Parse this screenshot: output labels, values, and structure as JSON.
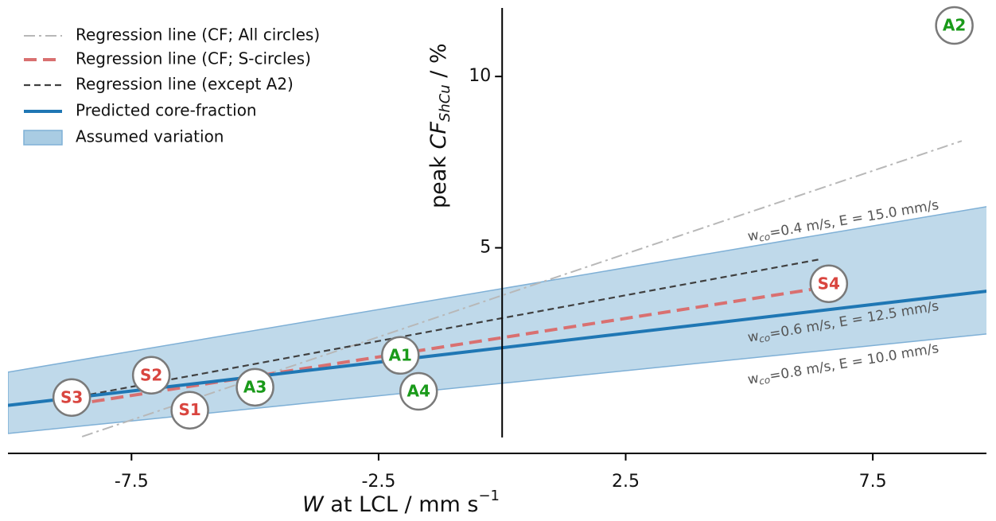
{
  "chart_data": {
    "type": "line",
    "xlabel": [
      "W",
      " at LCL / mm s",
      "−1"
    ],
    "ylabel": [
      "peak ",
      "CF",
      "ShCu",
      " / %"
    ],
    "xlim": [
      -10,
      9.8
    ],
    "ylim": [
      -1,
      12
    ],
    "xticks": [
      -7.5,
      -2.5,
      2.5,
      7.5
    ],
    "yticks": [
      5,
      10
    ],
    "legend": "upper left",
    "band": {
      "name": "Assumed variation",
      "color": "#a9cce3",
      "edge": "#7fb0d6",
      "x": [
        -10,
        9.84
      ],
      "upper": [
        1.37,
        6.21
      ],
      "lower": [
        -0.42,
        2.49
      ]
    },
    "series": [
      {
        "name": "Regression line (CF; All circles)",
        "color": "#b8b8b8",
        "linestyle": "dashdot",
        "x": [
          -8.5,
          9.3
        ],
        "values": [
          -0.51,
          8.12
        ]
      },
      {
        "name": "Regression line (CF; S-circles)",
        "color": "#d97070",
        "linestyle": "dashed",
        "x": [
          -8.3,
          6.5
        ],
        "values": [
          0.51,
          3.84
        ]
      },
      {
        "name": "Regression line (except A2)",
        "color": "#404040",
        "linestyle": "dashed-thin",
        "x": [
          -8.34,
          6.45
        ],
        "values": [
          0.72,
          4.67
        ]
      },
      {
        "name": "Predicted core-fraction",
        "color": "#1f77b4",
        "linestyle": "solid",
        "x": [
          -10,
          9.84
        ],
        "values": [
          0.4,
          3.74
        ]
      }
    ],
    "points": [
      {
        "label": "S3",
        "x": -8.71,
        "y": 0.63,
        "color": "#d9453f"
      },
      {
        "label": "S2",
        "x": -7.1,
        "y": 1.28,
        "color": "#d9453f"
      },
      {
        "label": "S1",
        "x": -6.32,
        "y": 0.26,
        "color": "#d9453f"
      },
      {
        "label": "A3",
        "x": -5.0,
        "y": 0.93,
        "color": "#1a9a1a"
      },
      {
        "label": "A1",
        "x": -2.06,
        "y": 1.86,
        "color": "#1a9a1a"
      },
      {
        "label": "A4",
        "x": -1.69,
        "y": 0.81,
        "color": "#1a9a1a"
      },
      {
        "label": "S4",
        "x": 6.61,
        "y": 3.95,
        "color": "#d9453f"
      },
      {
        "label": "A2",
        "x": 9.15,
        "y": 11.49,
        "color": "#1a9a1a"
      }
    ],
    "annotations": [
      {
        "text": "w",
        "sub": "co",
        "rest": "=0.4 m/s, E = 15.0 mm/s"
      },
      {
        "text": "w",
        "sub": "co",
        "rest": "=0.6 m/s, E = 12.5 mm/s"
      },
      {
        "text": "w",
        "sub": "co",
        "rest": "=0.8 m/s, E = 10.0 mm/s"
      }
    ]
  }
}
